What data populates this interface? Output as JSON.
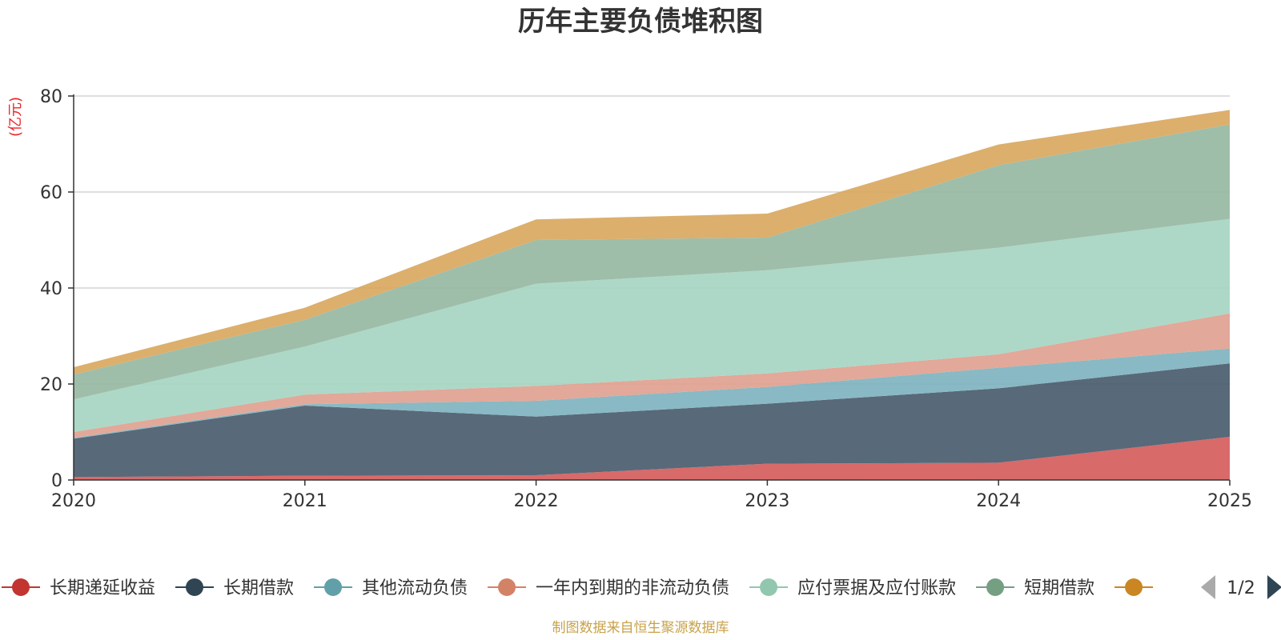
{
  "chart_data": {
    "type": "area",
    "stacked": true,
    "title": "历年主要负债堆积图",
    "unit_label": "(亿元)",
    "ylim": [
      0,
      80
    ],
    "yticks": [
      0,
      20,
      40,
      60,
      80
    ],
    "x": [
      "2020",
      "2021",
      "2022",
      "2023",
      "2024",
      "2025"
    ],
    "series": [
      {
        "name": "长期递延收益",
        "color": "#d55d5d",
        "values": [
          0.6,
          0.9,
          1.0,
          3.4,
          3.6,
          9.0
        ]
      },
      {
        "name": "长期借款",
        "color": "#4a5c6e",
        "values": [
          8.0,
          14.6,
          12.2,
          12.5,
          15.5,
          15.3
        ]
      },
      {
        "name": "其他流动负债",
        "color": "#7fb3bf",
        "values": [
          0.2,
          0.3,
          3.3,
          3.5,
          4.3,
          3.1
        ]
      },
      {
        "name": "一年内到期的非流动负债",
        "color": "#e0a190",
        "values": [
          1.2,
          2.0,
          3.1,
          2.8,
          2.8,
          7.3
        ]
      },
      {
        "name": "应付票据及应付账款",
        "color": "#a6d5c2",
        "values": [
          6.8,
          10.0,
          21.3,
          21.5,
          22.2,
          19.7
        ]
      },
      {
        "name": "短期借款",
        "color": "#97b8a3",
        "values": [
          5.2,
          5.6,
          9.1,
          6.8,
          17.2,
          19.7
        ]
      },
      {
        "name": "",
        "color": "#d9a85f",
        "values": [
          1.5,
          2.5,
          4.3,
          5.0,
          4.3,
          3.0
        ]
      }
    ],
    "legend": {
      "placement": "bottom",
      "entries": [
        {
          "label": "长期递延收益",
          "marker_color": "#c23531",
          "line_color": "#c23531"
        },
        {
          "label": "长期借款",
          "marker_color": "#2f4554",
          "line_color": "#2f4554"
        },
        {
          "label": "其他流动负债",
          "marker_color": "#61a0a8",
          "line_color": "#61a0a8"
        },
        {
          "label": "一年内到期的非流动负债",
          "marker_color": "#d48265",
          "line_color": "#d48265"
        },
        {
          "label": "应付票据及应付账款",
          "marker_color": "#91c7ae",
          "line_color": "#91c7ae"
        },
        {
          "label": "短期借款",
          "marker_color": "#749f83",
          "line_color": "#749f83"
        },
        {
          "label": "",
          "marker_color": "#ca8622",
          "line_color": "#ca8622"
        }
      ],
      "page_indicator": "1/2"
    },
    "source": "制图数据来自恒生聚源数据库"
  }
}
